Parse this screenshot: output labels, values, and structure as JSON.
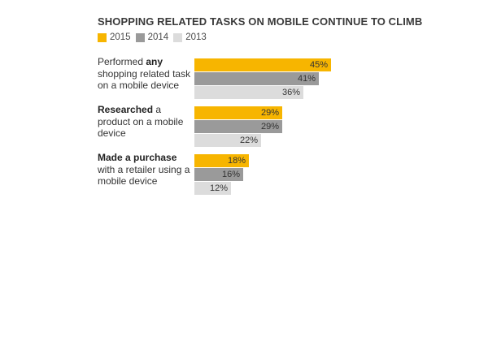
{
  "chart_data": {
    "type": "bar",
    "orientation": "horizontal",
    "title": "SHOPPING RELATED TASKS ON MOBILE CONTINUE TO CLIMB",
    "legend": [
      {
        "name": "2015",
        "color": "#f7b500"
      },
      {
        "name": "2014",
        "color": "#9a9a9a"
      },
      {
        "name": "2013",
        "color": "#dcdcdc"
      }
    ],
    "legend_position": "top-left",
    "categories": [
      {
        "prefix": "Performed ",
        "bold": "any",
        "suffix": " shopping related task on a mobile device"
      },
      {
        "prefix": "",
        "bold": "Researched",
        "suffix": " a product on a mobile device"
      },
      {
        "prefix": "",
        "bold": "Made a purchase",
        "suffix": " with a retailer using a mobile device"
      }
    ],
    "series": [
      {
        "name": "2015",
        "values": [
          45,
          29,
          18
        ],
        "labels": [
          "45%",
          "29%",
          "18%"
        ]
      },
      {
        "name": "2014",
        "values": [
          41,
          29,
          16
        ],
        "labels": [
          "41%",
          "29%",
          "16%"
        ]
      },
      {
        "name": "2013",
        "values": [
          36,
          22,
          12
        ],
        "labels": [
          "36%",
          "22%",
          "12%"
        ]
      }
    ],
    "unit": "%",
    "xlim": [
      0,
      100
    ],
    "grid": false
  }
}
